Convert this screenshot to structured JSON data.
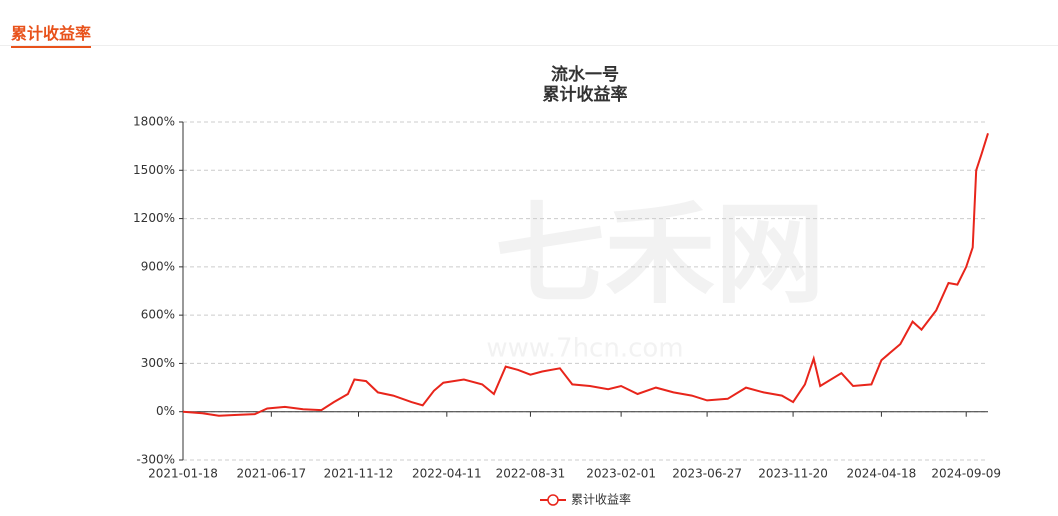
{
  "header": {
    "title": "累计收益率"
  },
  "chart_data": {
    "type": "line",
    "title": "流水一号",
    "subtitle": "累计收益率",
    "watermark": "七禾网",
    "watermark_url": "www.7hcn.com",
    "x": [
      "2021-01-18",
      "2021-02-20",
      "2021-03-20",
      "2021-04-20",
      "2021-05-20",
      "2021-06-10",
      "2021-07-10",
      "2021-08-10",
      "2021-09-10",
      "2021-10-01",
      "2021-10-25",
      "2021-11-05",
      "2021-11-25",
      "2021-12-15",
      "2022-01-10",
      "2022-02-10",
      "2022-03-01",
      "2022-03-20",
      "2022-04-05",
      "2022-05-10",
      "2022-06-10",
      "2022-06-30",
      "2022-07-20",
      "2022-08-10",
      "2022-08-31",
      "2022-09-20",
      "2022-10-20",
      "2022-11-10",
      "2022-12-10",
      "2023-01-10",
      "2023-02-01",
      "2023-03-01",
      "2023-04-01",
      "2023-05-01",
      "2023-06-01",
      "2023-06-27",
      "2023-08-01",
      "2023-09-01",
      "2023-10-01",
      "2023-11-01",
      "2023-11-20",
      "2023-12-10",
      "2023-12-25",
      "2024-01-05",
      "2024-02-10",
      "2024-03-01",
      "2024-04-01",
      "2024-04-18",
      "2024-05-20",
      "2024-06-10",
      "2024-06-25",
      "2024-07-20",
      "2024-08-10",
      "2024-08-25",
      "2024-09-09",
      "2024-09-20",
      "2024-09-26",
      "2024-10-05",
      "2024-10-16"
    ],
    "series": [
      {
        "name": "累计收益率",
        "color": "#e8251b",
        "values": [
          0,
          -10,
          -25,
          -20,
          -15,
          20,
          30,
          15,
          10,
          60,
          110,
          200,
          190,
          120,
          100,
          60,
          40,
          130,
          180,
          200,
          170,
          110,
          280,
          260,
          230,
          250,
          270,
          170,
          160,
          140,
          160,
          110,
          150,
          120,
          100,
          70,
          80,
          150,
          120,
          100,
          60,
          170,
          330,
          160,
          240,
          160,
          170,
          320,
          420,
          560,
          510,
          630,
          800,
          790,
          900,
          1020,
          1500,
          1600,
          1730
        ]
      }
    ],
    "xlim": [
      "2021-01-18",
      "2024-10-16"
    ],
    "xticks": [
      "2021-01-18",
      "2021-06-17",
      "2021-11-12",
      "2022-04-11",
      "2022-08-31",
      "2023-02-01",
      "2023-06-27",
      "2023-11-20",
      "2024-04-18",
      "2024-09-09"
    ],
    "ylim": [
      -300,
      1800
    ],
    "yticks": [
      {
        "value": -300,
        "label": "-300%"
      },
      {
        "value": 0,
        "label": "0%"
      },
      {
        "value": 300,
        "label": "300%"
      },
      {
        "value": 600,
        "label": "600%"
      },
      {
        "value": 900,
        "label": "900%"
      },
      {
        "value": 1200,
        "label": "1200%"
      },
      {
        "value": 1500,
        "label": "1500%"
      },
      {
        "value": 1800,
        "label": "1800%"
      }
    ],
    "grid": true
  }
}
